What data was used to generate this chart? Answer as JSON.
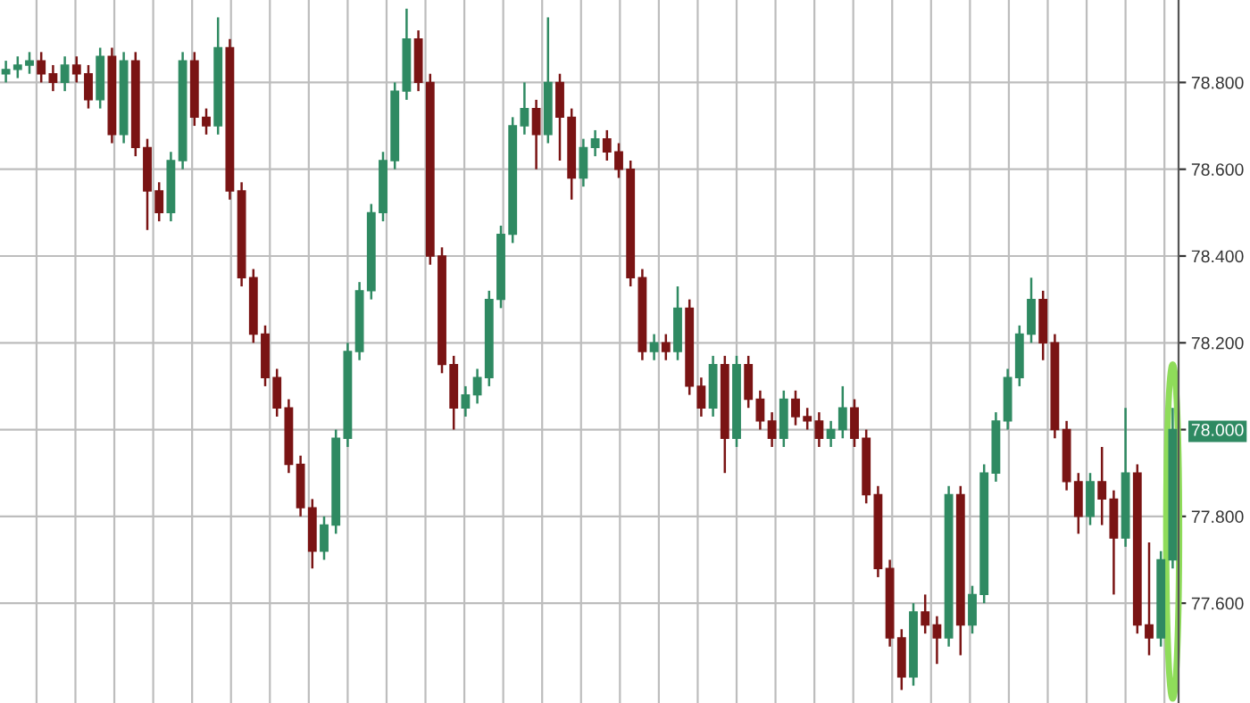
{
  "chart_data": {
    "type": "candlestick",
    "categories": [
      null,
      null,
      null,
      null,
      null,
      null,
      null,
      null,
      null,
      null,
      null,
      null,
      null,
      null,
      null,
      null,
      null,
      null,
      null,
      null,
      null,
      null,
      null,
      null,
      null,
      null,
      null,
      null,
      null,
      null,
      null,
      null,
      null,
      null,
      null,
      null,
      null,
      null,
      null,
      null,
      null,
      null,
      null,
      null,
      null,
      null,
      null,
      null,
      null,
      null,
      null,
      null,
      null,
      null,
      null,
      null,
      null,
      null,
      null,
      null,
      null,
      null,
      null,
      null,
      null,
      null,
      null,
      null,
      null,
      null,
      null,
      null,
      null,
      null,
      null,
      null,
      null,
      null,
      null,
      null,
      null,
      null,
      null,
      null,
      null,
      null,
      null,
      null,
      null,
      null,
      null,
      null,
      null,
      null,
      null,
      null,
      null,
      null,
      null,
      null
    ],
    "ohlc": [
      [
        78.82,
        78.85,
        78.8,
        78.83
      ],
      [
        78.83,
        78.86,
        78.81,
        78.84
      ],
      [
        78.84,
        78.87,
        78.82,
        78.85
      ],
      [
        78.85,
        78.87,
        78.8,
        78.82
      ],
      [
        78.82,
        78.84,
        78.78,
        78.8
      ],
      [
        78.8,
        78.86,
        78.78,
        78.84
      ],
      [
        78.84,
        78.86,
        78.8,
        78.82
      ],
      [
        78.82,
        78.84,
        78.74,
        78.76
      ],
      [
        78.76,
        78.88,
        78.74,
        78.86
      ],
      [
        78.86,
        78.88,
        78.66,
        78.68
      ],
      [
        78.68,
        78.87,
        78.66,
        78.85
      ],
      [
        78.85,
        78.87,
        78.63,
        78.65
      ],
      [
        78.65,
        78.67,
        78.46,
        78.55
      ],
      [
        78.55,
        78.57,
        78.48,
        78.5
      ],
      [
        78.5,
        78.64,
        78.48,
        78.62
      ],
      [
        78.62,
        78.87,
        78.6,
        78.85
      ],
      [
        78.85,
        78.87,
        78.7,
        78.72
      ],
      [
        78.72,
        78.74,
        78.68,
        78.7
      ],
      [
        78.7,
        78.95,
        78.68,
        78.88
      ],
      [
        78.88,
        78.9,
        78.53,
        78.55
      ],
      [
        78.55,
        78.57,
        78.33,
        78.35
      ],
      [
        78.35,
        78.37,
        78.2,
        78.22
      ],
      [
        78.22,
        78.24,
        78.1,
        78.12
      ],
      [
        78.12,
        78.14,
        78.03,
        78.05
      ],
      [
        78.05,
        78.07,
        77.9,
        77.92
      ],
      [
        77.92,
        77.94,
        77.8,
        77.82
      ],
      [
        77.82,
        77.84,
        77.68,
        77.72
      ],
      [
        77.72,
        77.8,
        77.7,
        77.78
      ],
      [
        77.78,
        78.0,
        77.76,
        77.98
      ],
      [
        77.98,
        78.2,
        77.96,
        78.18
      ],
      [
        78.18,
        78.34,
        78.16,
        78.32
      ],
      [
        78.32,
        78.52,
        78.3,
        78.5
      ],
      [
        78.5,
        78.64,
        78.48,
        78.62
      ],
      [
        78.62,
        78.8,
        78.6,
        78.78
      ],
      [
        78.78,
        78.97,
        78.76,
        78.9
      ],
      [
        78.9,
        78.92,
        78.78,
        78.8
      ],
      [
        78.8,
        78.82,
        78.38,
        78.4
      ],
      [
        78.4,
        78.42,
        78.13,
        78.15
      ],
      [
        78.15,
        78.17,
        78.0,
        78.05
      ],
      [
        78.05,
        78.1,
        78.03,
        78.08
      ],
      [
        78.08,
        78.14,
        78.06,
        78.12
      ],
      [
        78.12,
        78.32,
        78.1,
        78.3
      ],
      [
        78.3,
        78.47,
        78.28,
        78.45
      ],
      [
        78.45,
        78.72,
        78.43,
        78.7
      ],
      [
        78.7,
        78.8,
        78.68,
        78.74
      ],
      [
        78.74,
        78.76,
        78.6,
        78.68
      ],
      [
        78.68,
        78.95,
        78.66,
        78.8
      ],
      [
        78.8,
        78.82,
        78.62,
        78.72
      ],
      [
        78.72,
        78.74,
        78.53,
        78.58
      ],
      [
        78.58,
        78.67,
        78.56,
        78.65
      ],
      [
        78.65,
        78.69,
        78.63,
        78.67
      ],
      [
        78.67,
        78.69,
        78.62,
        78.64
      ],
      [
        78.64,
        78.66,
        78.58,
        78.6
      ],
      [
        78.6,
        78.62,
        78.33,
        78.35
      ],
      [
        78.35,
        78.37,
        78.16,
        78.18
      ],
      [
        78.18,
        78.22,
        78.16,
        78.2
      ],
      [
        78.2,
        78.22,
        78.16,
        78.18
      ],
      [
        78.18,
        78.33,
        78.16,
        78.28
      ],
      [
        78.28,
        78.3,
        78.08,
        78.1
      ],
      [
        78.1,
        78.12,
        78.03,
        78.05
      ],
      [
        78.05,
        78.17,
        78.03,
        78.15
      ],
      [
        78.15,
        78.17,
        77.9,
        77.98
      ],
      [
        77.98,
        78.17,
        77.96,
        78.15
      ],
      [
        78.15,
        78.17,
        78.05,
        78.07
      ],
      [
        78.07,
        78.09,
        78.0,
        78.02
      ],
      [
        78.02,
        78.04,
        77.96,
        77.98
      ],
      [
        77.98,
        78.09,
        77.96,
        78.07
      ],
      [
        78.07,
        78.09,
        78.01,
        78.03
      ],
      [
        78.03,
        78.05,
        78.0,
        78.02
      ],
      [
        78.02,
        78.04,
        77.96,
        77.98
      ],
      [
        77.98,
        78.02,
        77.96,
        78.0
      ],
      [
        78.0,
        78.1,
        77.98,
        78.05
      ],
      [
        78.05,
        78.07,
        77.96,
        77.98
      ],
      [
        77.98,
        78.0,
        77.83,
        77.85
      ],
      [
        77.85,
        77.87,
        77.66,
        77.68
      ],
      [
        77.68,
        77.7,
        77.5,
        77.52
      ],
      [
        77.52,
        77.54,
        77.4,
        77.43
      ],
      [
        77.43,
        77.6,
        77.41,
        77.58
      ],
      [
        77.58,
        77.62,
        77.53,
        77.55
      ],
      [
        77.55,
        77.57,
        77.46,
        77.52
      ],
      [
        77.52,
        77.87,
        77.5,
        77.85
      ],
      [
        77.85,
        77.87,
        77.48,
        77.55
      ],
      [
        77.55,
        77.64,
        77.53,
        77.62
      ],
      [
        77.62,
        77.92,
        77.6,
        77.9
      ],
      [
        77.9,
        78.04,
        77.88,
        78.02
      ],
      [
        78.02,
        78.14,
        78.0,
        78.12
      ],
      [
        78.12,
        78.24,
        78.1,
        78.22
      ],
      [
        78.22,
        78.35,
        78.2,
        78.3
      ],
      [
        78.3,
        78.32,
        78.16,
        78.2
      ],
      [
        78.2,
        78.22,
        77.98,
        78.0
      ],
      [
        78.0,
        78.02,
        77.86,
        77.88
      ],
      [
        77.88,
        77.9,
        77.76,
        77.8
      ],
      [
        77.8,
        77.9,
        77.78,
        77.88
      ],
      [
        77.88,
        77.96,
        77.78,
        77.84
      ],
      [
        77.84,
        77.86,
        77.62,
        77.75
      ],
      [
        77.75,
        78.05,
        77.73,
        77.9
      ],
      [
        77.9,
        77.92,
        77.53,
        77.55
      ],
      [
        77.55,
        77.74,
        77.48,
        77.52
      ],
      [
        77.52,
        77.72,
        77.5,
        77.7
      ],
      [
        77.7,
        78.05,
        77.68,
        78.0
      ]
    ],
    "ylim": [
      77.37,
      78.99
    ],
    "yticks": [
      {
        "value": 77.6,
        "label": "77.600"
      },
      {
        "value": 77.8,
        "label": "77.800"
      },
      {
        "value": 78.0,
        "label": "78.000"
      },
      {
        "value": 78.2,
        "label": "78.200"
      },
      {
        "value": 78.4,
        "label": "78.400"
      },
      {
        "value": 78.6,
        "label": "78.600"
      },
      {
        "value": 78.8,
        "label": "78.800"
      }
    ],
    "tick_labels": "y",
    "grid": true
  }
}
